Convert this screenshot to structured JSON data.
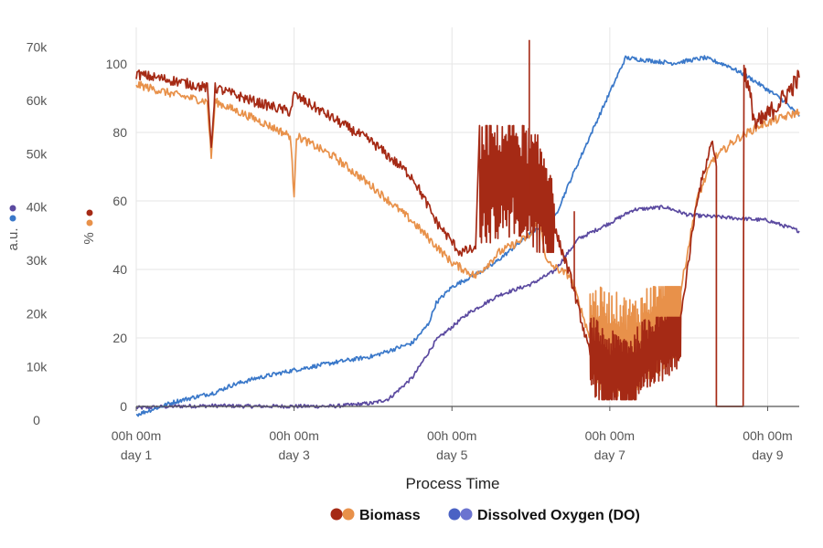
{
  "chart_data": {
    "type": "line",
    "title": "",
    "xlabel": "Process Time",
    "x_unit": "day",
    "xlim": [
      1,
      9.4
    ],
    "x_ticks": [
      {
        "x": 1,
        "line1": "00h 00m",
        "line2": "day 1"
      },
      {
        "x": 3,
        "line1": "00h 00m",
        "line2": "day 3"
      },
      {
        "x": 5,
        "line1": "00h 00m",
        "line2": "day 5"
      },
      {
        "x": 7,
        "line1": "00h 00m",
        "line2": "day 7"
      },
      {
        "x": 9,
        "line1": "00h 00m",
        "line2": "day 9"
      }
    ],
    "y_left_outer": {
      "label": "a.u.",
      "ylim": [
        0,
        72000
      ],
      "ticks": [
        {
          "v": 0,
          "label": "0"
        },
        {
          "v": 10000,
          "label": "10k"
        },
        {
          "v": 20000,
          "label": "20k"
        },
        {
          "v": 30000,
          "label": "30k"
        },
        {
          "v": 40000,
          "label": "40k"
        },
        {
          "v": 50000,
          "label": "50k"
        },
        {
          "v": 60000,
          "label": "60k"
        },
        {
          "v": 70000,
          "label": "70k"
        }
      ],
      "marker_colors": [
        "#5b4aa0",
        "#3a78c9"
      ]
    },
    "y_left_inner": {
      "label": "%",
      "ylim": [
        0,
        108
      ],
      "ticks": [
        {
          "v": 0,
          "label": "0"
        },
        {
          "v": 20,
          "label": "20"
        },
        {
          "v": 40,
          "label": "40"
        },
        {
          "v": 60,
          "label": "60"
        },
        {
          "v": 80,
          "label": "80"
        },
        {
          "v": 100,
          "label": "100"
        }
      ],
      "marker_colors": [
        "#a52a15",
        "#e8914a"
      ]
    },
    "series": [
      {
        "name": "Biomass (dark)",
        "axis": "percent",
        "color": "#a52a15",
        "noise": 1.5,
        "points": [
          [
            1.0,
            97
          ],
          [
            1.5,
            95
          ],
          [
            1.9,
            93
          ],
          [
            1.95,
            76
          ],
          [
            2.0,
            93
          ],
          [
            2.5,
            89
          ],
          [
            2.95,
            86
          ],
          [
            3.0,
            91
          ],
          [
            3.5,
            84
          ],
          [
            4.0,
            77
          ],
          [
            4.5,
            67
          ],
          [
            4.8,
            54
          ],
          [
            5.1,
            45
          ],
          [
            5.3,
            46
          ]
        ],
        "noisy_segments": [
          {
            "x0": 5.35,
            "x1": 6.3,
            "lo": 45,
            "hi": 82,
            "base": [
              [
                5.35,
                65
              ],
              [
                5.8,
                68
              ],
              [
                6.2,
                58
              ],
              [
                6.3,
                52
              ]
            ]
          },
          {
            "x0": 6.75,
            "x1": 7.9,
            "lo": 2,
            "hi": 26,
            "base": [
              [
                6.75,
                15
              ],
              [
                7.0,
                10
              ],
              [
                7.3,
                10
              ],
              [
                7.6,
                18
              ],
              [
                7.9,
                24
              ]
            ]
          }
        ],
        "points2": [
          [
            6.3,
            52
          ],
          [
            6.5,
            38
          ],
          [
            6.75,
            15
          ]
        ],
        "points3": [
          [
            7.9,
            26
          ],
          [
            8.1,
            60
          ],
          [
            8.3,
            78
          ],
          [
            8.35,
            70
          ]
        ],
        "spikes": [
          [
            5.98,
            107
          ],
          [
            6.55,
            57
          ]
        ],
        "drop": {
          "x0": 8.35,
          "x1": 8.69,
          "y": 0
        },
        "points4": [
          [
            8.7,
            99
          ],
          [
            8.85,
            82
          ],
          [
            9.0,
            85
          ],
          [
            9.2,
            90
          ],
          [
            9.4,
            96
          ]
        ]
      },
      {
        "name": "Biomass (light)",
        "axis": "percent",
        "color": "#e8914a",
        "noise": 1.2,
        "points": [
          [
            1.0,
            94
          ],
          [
            1.5,
            91
          ],
          [
            1.9,
            89
          ],
          [
            1.95,
            73
          ],
          [
            2.0,
            89
          ],
          [
            2.5,
            84
          ],
          [
            2.95,
            79
          ],
          [
            3.0,
            62
          ],
          [
            3.03,
            79
          ],
          [
            3.5,
            73
          ],
          [
            4.0,
            64
          ],
          [
            4.5,
            54
          ],
          [
            5.0,
            42
          ],
          [
            5.3,
            38
          ],
          [
            5.6,
            45
          ],
          [
            6.0,
            50
          ],
          [
            6.1,
            56
          ],
          [
            6.2,
            42
          ],
          [
            6.5,
            38
          ],
          [
            6.75,
            20
          ]
        ],
        "noisy_segments": [
          {
            "x0": 6.75,
            "x1": 7.9,
            "lo": 3,
            "hi": 35,
            "base": [
              [
                6.75,
                20
              ],
              [
                7.0,
                18
              ],
              [
                7.3,
                16
              ],
              [
                7.6,
                22
              ],
              [
                7.9,
                34
              ]
            ]
          }
        ],
        "points3": [
          [
            7.9,
            34
          ],
          [
            8.1,
            60
          ],
          [
            8.3,
            72
          ],
          [
            8.6,
            78
          ],
          [
            8.9,
            82
          ],
          [
            9.4,
            86
          ]
        ]
      },
      {
        "name": "Dissolved Oxygen (blue)",
        "axis": "au",
        "color": "#3a78c9",
        "noise": 400,
        "points": [
          [
            1.0,
            1000
          ],
          [
            1.5,
            3500
          ],
          [
            2.0,
            5200
          ],
          [
            2.2,
            6500
          ],
          [
            2.5,
            7800
          ],
          [
            3.0,
            9400
          ],
          [
            3.5,
            10800
          ],
          [
            4.0,
            12000
          ],
          [
            4.5,
            14500
          ],
          [
            4.7,
            18000
          ],
          [
            4.8,
            22000
          ],
          [
            5.0,
            25000
          ],
          [
            5.5,
            29000
          ],
          [
            6.0,
            35000
          ],
          [
            6.3,
            38000
          ],
          [
            6.5,
            45000
          ],
          [
            6.8,
            55000
          ],
          [
            7.2,
            68000
          ],
          [
            7.5,
            67500
          ],
          [
            7.8,
            67000
          ],
          [
            8.2,
            68000
          ],
          [
            8.5,
            66500
          ],
          [
            8.8,
            64000
          ],
          [
            9.0,
            62000
          ],
          [
            9.2,
            60000
          ],
          [
            9.4,
            57000
          ]
        ]
      },
      {
        "name": "Dissolved Oxygen (purple)",
        "axis": "au",
        "color": "#5b4aa0",
        "noise": 350,
        "points": [
          [
            1.0,
            2300
          ],
          [
            1.5,
            2600
          ],
          [
            2.0,
            2700
          ],
          [
            2.5,
            2600
          ],
          [
            3.0,
            2600
          ],
          [
            3.5,
            2600
          ],
          [
            4.0,
            3200
          ],
          [
            4.2,
            4000
          ],
          [
            4.5,
            8000
          ],
          [
            4.8,
            15000
          ],
          [
            5.2,
            20000
          ],
          [
            5.6,
            23500
          ],
          [
            6.0,
            25500
          ],
          [
            6.3,
            28000
          ],
          [
            6.6,
            34000
          ],
          [
            7.0,
            37000
          ],
          [
            7.3,
            39500
          ],
          [
            7.7,
            40000
          ],
          [
            8.0,
            38500
          ],
          [
            8.5,
            38000
          ],
          [
            9.0,
            37500
          ],
          [
            9.4,
            35500
          ]
        ]
      }
    ],
    "legend": {
      "position": "bottom-center",
      "items": [
        {
          "label": "Biomass",
          "colors": [
            "#a52a15",
            "#e8914a"
          ]
        },
        {
          "label": "Dissolved Oxygen (DO)",
          "colors": [
            "#4a62c4",
            "#6b74d0"
          ]
        }
      ]
    }
  }
}
